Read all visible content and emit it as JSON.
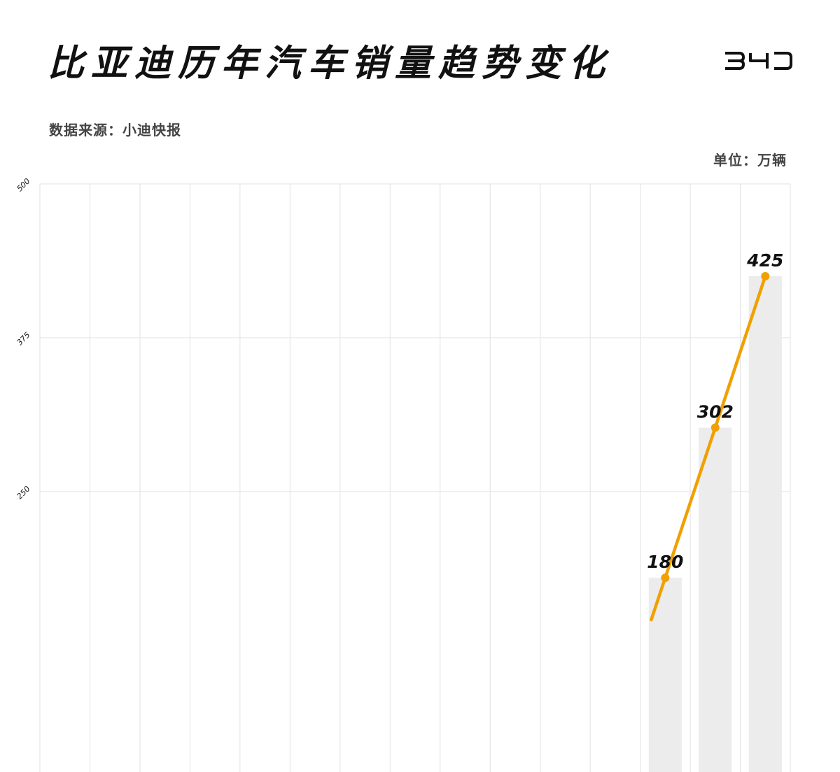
{
  "header": {
    "title": "比亚迪历年汽车销量趋势变化",
    "logo_text": "BYD",
    "source": "数据来源：小迪快报",
    "unit": "单位：万辆"
  },
  "colors": {
    "line": "#F0A000",
    "bar": "#ECECEC",
    "grid": "#E2E2E2",
    "text": "#111111"
  },
  "chart_data": {
    "type": "bar",
    "overlay": "line",
    "ylim": [
      0,
      500
    ],
    "yticks": [
      250,
      375,
      500
    ],
    "category_count": 15,
    "points": [
      {
        "index": 12,
        "value": 180,
        "label": "180"
      },
      {
        "index": 13,
        "value": 302,
        "label": "302"
      },
      {
        "index": 14,
        "value": 425,
        "label": "425"
      }
    ]
  }
}
